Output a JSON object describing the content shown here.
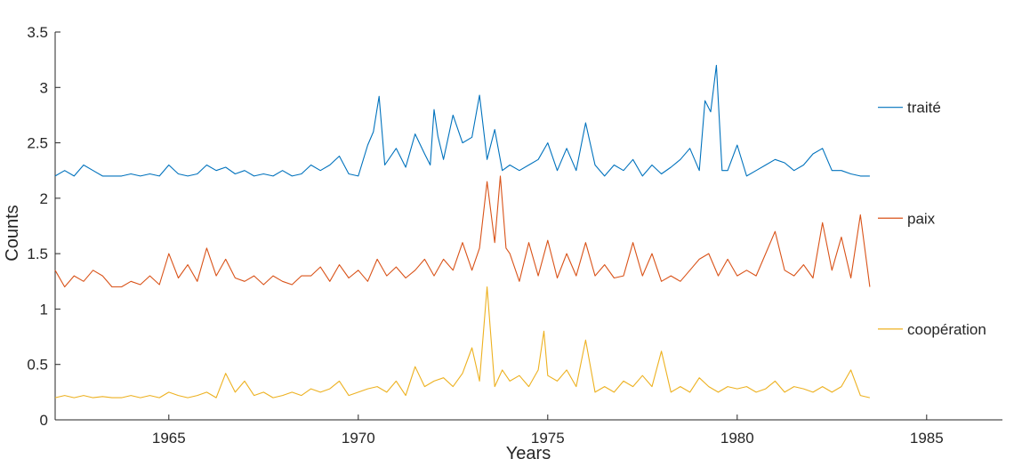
{
  "chart_data": {
    "type": "line",
    "title": "",
    "xlabel": "Years",
    "ylabel": "Counts",
    "xlim": [
      1962,
      1987
    ],
    "ylim": [
      0,
      3.5
    ],
    "x_ticks": [
      "1965",
      "1970",
      "1975",
      "1980",
      "1985"
    ],
    "y_ticks": [
      "0",
      "0.5",
      "1",
      "1.5",
      "2",
      "2.5",
      "3",
      "3.5"
    ],
    "grid": false,
    "legend_placement": "right, labels beside each series",
    "series": [
      {
        "name": "traité",
        "color": "#0072BD",
        "x": [
          1962.0,
          1962.25,
          1962.5,
          1962.75,
          1963.0,
          1963.25,
          1963.5,
          1963.75,
          1964.0,
          1964.25,
          1964.5,
          1964.75,
          1965.0,
          1965.25,
          1965.5,
          1965.75,
          1966.0,
          1966.25,
          1966.5,
          1966.75,
          1967.0,
          1967.25,
          1967.5,
          1967.75,
          1968.0,
          1968.25,
          1968.5,
          1968.75,
          1969.0,
          1969.25,
          1969.5,
          1969.75,
          1970.0,
          1970.25,
          1970.4,
          1970.55,
          1970.7,
          1971.0,
          1971.25,
          1971.5,
          1971.75,
          1971.9,
          1972.0,
          1972.1,
          1972.25,
          1972.5,
          1972.75,
          1973.0,
          1973.2,
          1973.4,
          1973.6,
          1973.8,
          1974.0,
          1974.25,
          1974.5,
          1974.75,
          1975.0,
          1975.25,
          1975.5,
          1975.75,
          1976.0,
          1976.25,
          1976.5,
          1976.75,
          1977.0,
          1977.25,
          1977.5,
          1977.75,
          1978.0,
          1978.25,
          1978.5,
          1978.75,
          1979.0,
          1979.15,
          1979.3,
          1979.45,
          1979.6,
          1979.75,
          1980.0,
          1980.25,
          1980.5,
          1980.75,
          1981.0,
          1981.25,
          1981.5,
          1981.75,
          1982.0,
          1982.25,
          1982.5,
          1982.75,
          1983.0,
          1983.25,
          1983.5
        ],
        "values": [
          2.2,
          2.25,
          2.2,
          2.3,
          2.25,
          2.2,
          2.2,
          2.2,
          2.22,
          2.2,
          2.22,
          2.2,
          2.3,
          2.22,
          2.2,
          2.22,
          2.3,
          2.25,
          2.28,
          2.22,
          2.25,
          2.2,
          2.22,
          2.2,
          2.25,
          2.2,
          2.22,
          2.3,
          2.25,
          2.3,
          2.38,
          2.22,
          2.2,
          2.48,
          2.6,
          2.92,
          2.3,
          2.45,
          2.28,
          2.58,
          2.4,
          2.3,
          2.8,
          2.56,
          2.35,
          2.75,
          2.5,
          2.55,
          2.93,
          2.35,
          2.62,
          2.25,
          2.3,
          2.25,
          2.3,
          2.35,
          2.5,
          2.25,
          2.45,
          2.25,
          2.68,
          2.3,
          2.2,
          2.3,
          2.25,
          2.35,
          2.2,
          2.3,
          2.22,
          2.28,
          2.35,
          2.45,
          2.25,
          2.88,
          2.78,
          3.2,
          2.25,
          2.25,
          2.48,
          2.2,
          2.25,
          2.3,
          2.35,
          2.32,
          2.25,
          2.3,
          2.4,
          2.45,
          2.25,
          2.25,
          2.22,
          2.2,
          2.2
        ]
      },
      {
        "name": "paix",
        "color": "#D95319",
        "x": [
          1962.0,
          1962.25,
          1962.5,
          1962.75,
          1963.0,
          1963.25,
          1963.5,
          1963.75,
          1964.0,
          1964.25,
          1964.5,
          1964.75,
          1965.0,
          1965.25,
          1965.5,
          1965.75,
          1966.0,
          1966.25,
          1966.5,
          1966.75,
          1967.0,
          1967.25,
          1967.5,
          1967.75,
          1968.0,
          1968.25,
          1968.5,
          1968.75,
          1969.0,
          1969.25,
          1969.5,
          1969.75,
          1970.0,
          1970.25,
          1970.5,
          1970.75,
          1971.0,
          1971.25,
          1971.5,
          1971.75,
          1972.0,
          1972.25,
          1972.5,
          1972.75,
          1973.0,
          1973.2,
          1973.4,
          1973.6,
          1973.75,
          1973.9,
          1974.0,
          1974.25,
          1974.5,
          1974.75,
          1975.0,
          1975.25,
          1975.5,
          1975.75,
          1976.0,
          1976.25,
          1976.5,
          1976.75,
          1977.0,
          1977.25,
          1977.5,
          1977.75,
          1978.0,
          1978.25,
          1978.5,
          1978.75,
          1979.0,
          1979.25,
          1979.5,
          1979.75,
          1980.0,
          1980.25,
          1980.5,
          1980.75,
          1981.0,
          1981.25,
          1981.5,
          1981.75,
          1982.0,
          1982.25,
          1982.5,
          1982.75,
          1983.0,
          1983.25,
          1983.5
        ],
        "values": [
          1.35,
          1.2,
          1.3,
          1.25,
          1.35,
          1.3,
          1.2,
          1.2,
          1.25,
          1.22,
          1.3,
          1.22,
          1.5,
          1.28,
          1.4,
          1.25,
          1.55,
          1.3,
          1.45,
          1.28,
          1.25,
          1.3,
          1.22,
          1.3,
          1.25,
          1.22,
          1.3,
          1.3,
          1.38,
          1.25,
          1.4,
          1.28,
          1.35,
          1.25,
          1.45,
          1.3,
          1.38,
          1.28,
          1.35,
          1.45,
          1.3,
          1.45,
          1.35,
          1.6,
          1.35,
          1.55,
          2.15,
          1.6,
          2.2,
          1.55,
          1.5,
          1.25,
          1.6,
          1.3,
          1.62,
          1.28,
          1.5,
          1.3,
          1.6,
          1.3,
          1.4,
          1.28,
          1.3,
          1.6,
          1.3,
          1.5,
          1.25,
          1.3,
          1.25,
          1.35,
          1.45,
          1.5,
          1.3,
          1.45,
          1.3,
          1.35,
          1.3,
          1.5,
          1.7,
          1.35,
          1.3,
          1.4,
          1.28,
          1.78,
          1.35,
          1.65,
          1.28,
          1.85,
          1.2
        ]
      },
      {
        "name": "coopération",
        "color": "#EDB120",
        "x": [
          1962.0,
          1962.25,
          1962.5,
          1962.75,
          1963.0,
          1963.25,
          1963.5,
          1963.75,
          1964.0,
          1964.25,
          1964.5,
          1964.75,
          1965.0,
          1965.25,
          1965.5,
          1965.75,
          1966.0,
          1966.25,
          1966.5,
          1966.75,
          1967.0,
          1967.25,
          1967.5,
          1967.75,
          1968.0,
          1968.25,
          1968.5,
          1968.75,
          1969.0,
          1969.25,
          1969.5,
          1969.75,
          1970.0,
          1970.25,
          1970.5,
          1970.75,
          1971.0,
          1971.25,
          1971.5,
          1971.75,
          1972.0,
          1972.25,
          1972.5,
          1972.75,
          1973.0,
          1973.2,
          1973.4,
          1973.6,
          1973.8,
          1974.0,
          1974.25,
          1974.5,
          1974.75,
          1974.9,
          1975.0,
          1975.25,
          1975.5,
          1975.75,
          1976.0,
          1976.25,
          1976.5,
          1976.75,
          1977.0,
          1977.25,
          1977.5,
          1977.75,
          1978.0,
          1978.25,
          1978.5,
          1978.75,
          1979.0,
          1979.25,
          1979.5,
          1979.75,
          1980.0,
          1980.25,
          1980.5,
          1980.75,
          1981.0,
          1981.25,
          1981.5,
          1981.75,
          1982.0,
          1982.25,
          1982.5,
          1982.75,
          1983.0,
          1983.25,
          1983.5
        ],
        "values": [
          0.2,
          0.22,
          0.2,
          0.22,
          0.2,
          0.21,
          0.2,
          0.2,
          0.22,
          0.2,
          0.22,
          0.2,
          0.25,
          0.22,
          0.2,
          0.22,
          0.25,
          0.2,
          0.42,
          0.25,
          0.35,
          0.22,
          0.25,
          0.2,
          0.22,
          0.25,
          0.22,
          0.28,
          0.25,
          0.28,
          0.35,
          0.22,
          0.25,
          0.28,
          0.3,
          0.25,
          0.35,
          0.22,
          0.48,
          0.3,
          0.35,
          0.38,
          0.3,
          0.42,
          0.65,
          0.35,
          1.2,
          0.3,
          0.45,
          0.35,
          0.4,
          0.3,
          0.45,
          0.8,
          0.4,
          0.35,
          0.45,
          0.3,
          0.72,
          0.25,
          0.3,
          0.25,
          0.35,
          0.3,
          0.4,
          0.3,
          0.62,
          0.25,
          0.3,
          0.25,
          0.38,
          0.3,
          0.25,
          0.3,
          0.28,
          0.3,
          0.25,
          0.28,
          0.35,
          0.25,
          0.3,
          0.28,
          0.25,
          0.3,
          0.25,
          0.3,
          0.45,
          0.22,
          0.2
        ]
      }
    ]
  }
}
